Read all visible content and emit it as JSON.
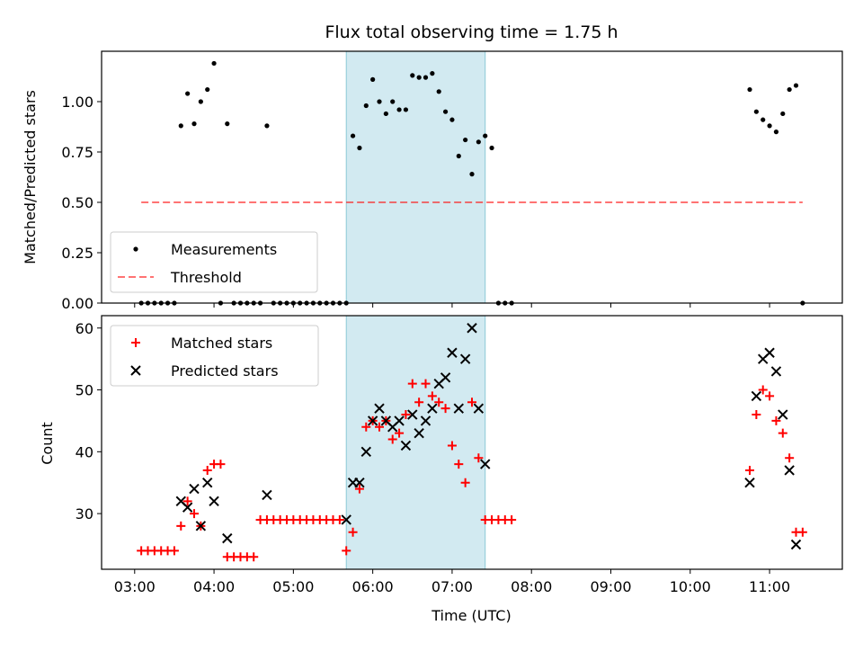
{
  "title": "Flux total observing time = 1.75 h",
  "colors": {
    "shade": "#add8e6",
    "threshold": "#ff0000",
    "matched": "#ff0000",
    "predicted": "#000000",
    "measurements": "#000000"
  },
  "chart_data": [
    {
      "type": "scatter",
      "panel": "top",
      "ylabel": "Matched/Predicted stars",
      "xlim": [
        "02:35",
        "11:55"
      ],
      "ylim": [
        0,
        1.25
      ],
      "yticks": [
        0,
        0.25,
        0.5,
        0.75,
        1.0
      ],
      "ytick_labels": [
        "0.00",
        "0.25",
        "0.50",
        "0.75",
        "1.00"
      ],
      "shaded_interval": [
        "05:40",
        "07:25"
      ],
      "legend": {
        "placement": "lower-left",
        "entries": [
          "Measurements",
          "Threshold"
        ]
      },
      "series": [
        {
          "name": "Measurements",
          "marker": "dot",
          "points": [
            [
              "03:05",
              0
            ],
            [
              "03:10",
              0
            ],
            [
              "03:15",
              0
            ],
            [
              "03:20",
              0
            ],
            [
              "03:25",
              0
            ],
            [
              "03:30",
              0
            ],
            [
              "03:35",
              0.88
            ],
            [
              "03:40",
              1.04
            ],
            [
              "03:45",
              0.89
            ],
            [
              "03:50",
              1.0
            ],
            [
              "03:55",
              1.06
            ],
            [
              "04:00",
              1.19
            ],
            [
              "04:05",
              0
            ],
            [
              "04:10",
              0.89
            ],
            [
              "04:15",
              0
            ],
            [
              "04:20",
              0
            ],
            [
              "04:25",
              0
            ],
            [
              "04:30",
              0
            ],
            [
              "04:35",
              0
            ],
            [
              "04:40",
              0.88
            ],
            [
              "04:45",
              0
            ],
            [
              "04:50",
              0
            ],
            [
              "04:55",
              0
            ],
            [
              "05:00",
              0
            ],
            [
              "05:05",
              0
            ],
            [
              "05:10",
              0
            ],
            [
              "05:15",
              0
            ],
            [
              "05:20",
              0
            ],
            [
              "05:25",
              0
            ],
            [
              "05:30",
              0
            ],
            [
              "05:35",
              0
            ],
            [
              "05:40",
              0
            ],
            [
              "05:45",
              0.83
            ],
            [
              "05:50",
              0.77
            ],
            [
              "05:55",
              0.98
            ],
            [
              "06:00",
              1.11
            ],
            [
              "06:05",
              1.0
            ],
            [
              "06:10",
              0.94
            ],
            [
              "06:15",
              1.0
            ],
            [
              "06:20",
              0.96
            ],
            [
              "06:25",
              0.96
            ],
            [
              "06:30",
              1.13
            ],
            [
              "06:35",
              1.12
            ],
            [
              "06:40",
              1.12
            ],
            [
              "06:45",
              1.14
            ],
            [
              "06:50",
              1.05
            ],
            [
              "06:55",
              0.95
            ],
            [
              "07:00",
              0.91
            ],
            [
              "07:05",
              0.73
            ],
            [
              "07:10",
              0.81
            ],
            [
              "07:15",
              0.64
            ],
            [
              "07:20",
              0.8
            ],
            [
              "07:25",
              0.83
            ],
            [
              "07:30",
              0.77
            ],
            [
              "07:35",
              0
            ],
            [
              "07:40",
              0
            ],
            [
              "07:45",
              0
            ],
            [
              "10:45",
              1.06
            ],
            [
              "10:50",
              0.95
            ],
            [
              "10:55",
              0.91
            ],
            [
              "11:00",
              0.88
            ],
            [
              "11:05",
              0.85
            ],
            [
              "11:10",
              0.94
            ],
            [
              "11:15",
              1.06
            ],
            [
              "11:20",
              1.08
            ],
            [
              "11:25",
              0
            ]
          ]
        },
        {
          "name": "Threshold",
          "marker": "dashed-line",
          "points": [
            [
              "03:05",
              0.5
            ],
            [
              "11:25",
              0.5
            ]
          ]
        }
      ]
    },
    {
      "type": "scatter",
      "panel": "bottom",
      "xlabel": "Time (UTC)",
      "ylabel": "Count",
      "xlim": [
        "02:35",
        "11:55"
      ],
      "ylim": [
        21,
        62
      ],
      "yticks": [
        30,
        40,
        50,
        60
      ],
      "xticks": [
        "03:00",
        "04:00",
        "05:00",
        "06:00",
        "07:00",
        "08:00",
        "09:00",
        "10:00",
        "11:00"
      ],
      "shaded_interval": [
        "05:40",
        "07:25"
      ],
      "legend": {
        "placement": "upper-left",
        "entries": [
          "Matched stars",
          "Predicted stars"
        ]
      },
      "series": [
        {
          "name": "Matched stars",
          "marker": "plus",
          "points": [
            [
              "03:05",
              24
            ],
            [
              "03:10",
              24
            ],
            [
              "03:15",
              24
            ],
            [
              "03:20",
              24
            ],
            [
              "03:25",
              24
            ],
            [
              "03:30",
              24
            ],
            [
              "03:35",
              28
            ],
            [
              "03:40",
              32
            ],
            [
              "03:45",
              30
            ],
            [
              "03:50",
              28
            ],
            [
              "03:55",
              37
            ],
            [
              "04:00",
              38
            ],
            [
              "04:05",
              38
            ],
            [
              "04:10",
              23
            ],
            [
              "04:15",
              23
            ],
            [
              "04:20",
              23
            ],
            [
              "04:25",
              23
            ],
            [
              "04:30",
              23
            ],
            [
              "04:35",
              29
            ],
            [
              "04:40",
              29
            ],
            [
              "04:45",
              29
            ],
            [
              "04:50",
              29
            ],
            [
              "04:55",
              29
            ],
            [
              "05:00",
              29
            ],
            [
              "05:05",
              29
            ],
            [
              "05:10",
              29
            ],
            [
              "05:15",
              29
            ],
            [
              "05:20",
              29
            ],
            [
              "05:25",
              29
            ],
            [
              "05:30",
              29
            ],
            [
              "05:35",
              29
            ],
            [
              "05:40",
              24
            ],
            [
              "05:45",
              27
            ],
            [
              "05:50",
              34
            ],
            [
              "05:55",
              44
            ],
            [
              "06:00",
              45
            ],
            [
              "06:05",
              44
            ],
            [
              "06:10",
              45
            ],
            [
              "06:15",
              42
            ],
            [
              "06:20",
              43
            ],
            [
              "06:25",
              46
            ],
            [
              "06:30",
              51
            ],
            [
              "06:35",
              48
            ],
            [
              "06:40",
              51
            ],
            [
              "06:45",
              49
            ],
            [
              "06:50",
              48
            ],
            [
              "06:55",
              47
            ],
            [
              "07:00",
              41
            ],
            [
              "07:05",
              38
            ],
            [
              "07:10",
              35
            ],
            [
              "07:15",
              48
            ],
            [
              "07:20",
              39
            ],
            [
              "07:25",
              29
            ],
            [
              "07:30",
              29
            ],
            [
              "07:35",
              29
            ],
            [
              "07:40",
              29
            ],
            [
              "07:45",
              29
            ],
            [
              "10:45",
              37
            ],
            [
              "10:50",
              46
            ],
            [
              "10:55",
              50
            ],
            [
              "11:00",
              49
            ],
            [
              "11:05",
              45
            ],
            [
              "11:10",
              43
            ],
            [
              "11:15",
              39
            ],
            [
              "11:20",
              27
            ],
            [
              "11:25",
              27
            ]
          ]
        },
        {
          "name": "Predicted stars",
          "marker": "x",
          "points": [
            [
              "03:35",
              32
            ],
            [
              "03:40",
              31
            ],
            [
              "03:45",
              34
            ],
            [
              "03:50",
              28
            ],
            [
              "03:55",
              35
            ],
            [
              "04:00",
              32
            ],
            [
              "04:10",
              26
            ],
            [
              "04:40",
              33
            ],
            [
              "05:40",
              29
            ],
            [
              "05:45",
              35
            ],
            [
              "05:50",
              35
            ],
            [
              "05:55",
              40
            ],
            [
              "06:00",
              45
            ],
            [
              "06:05",
              47
            ],
            [
              "06:10",
              45
            ],
            [
              "06:15",
              44
            ],
            [
              "06:20",
              45
            ],
            [
              "06:25",
              41
            ],
            [
              "06:30",
              46
            ],
            [
              "06:35",
              43
            ],
            [
              "06:40",
              45
            ],
            [
              "06:45",
              47
            ],
            [
              "06:50",
              51
            ],
            [
              "06:55",
              52
            ],
            [
              "07:00",
              56
            ],
            [
              "07:05",
              47
            ],
            [
              "07:10",
              55
            ],
            [
              "07:15",
              60
            ],
            [
              "07:20",
              47
            ],
            [
              "07:25",
              38
            ],
            [
              "10:45",
              35
            ],
            [
              "10:50",
              49
            ],
            [
              "10:55",
              55
            ],
            [
              "11:00",
              56
            ],
            [
              "11:05",
              53
            ],
            [
              "11:10",
              46
            ],
            [
              "11:15",
              37
            ],
            [
              "11:20",
              25
            ]
          ]
        }
      ]
    }
  ]
}
